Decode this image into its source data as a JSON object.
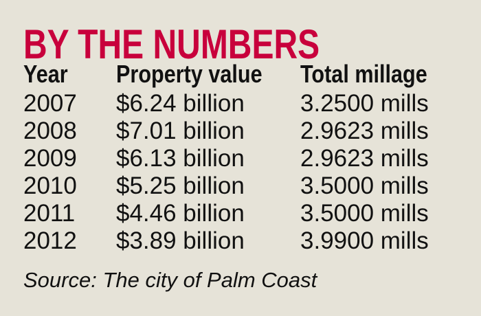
{
  "title": "BY THE NUMBERS",
  "headers": [
    "Year",
    "Property value",
    "Total millage"
  ],
  "rows": [
    [
      "2007",
      "$6.24 billion",
      "3.2500 mills"
    ],
    [
      "2008",
      "$7.01 billion",
      "2.9623 mills"
    ],
    [
      "2009",
      "$6.13 billion",
      "2.9623 mills"
    ],
    [
      "2010",
      "$5.25 billion",
      "3.5000 mills"
    ],
    [
      "2011",
      "$4.46 billion",
      "3.5000 mills"
    ],
    [
      "2012",
      "$3.89 billion",
      "3.9900 mills"
    ]
  ],
  "source": "Source: The city of Palm Coast",
  "colors": {
    "title": "#c8003c",
    "background": "#e6e3d8"
  }
}
